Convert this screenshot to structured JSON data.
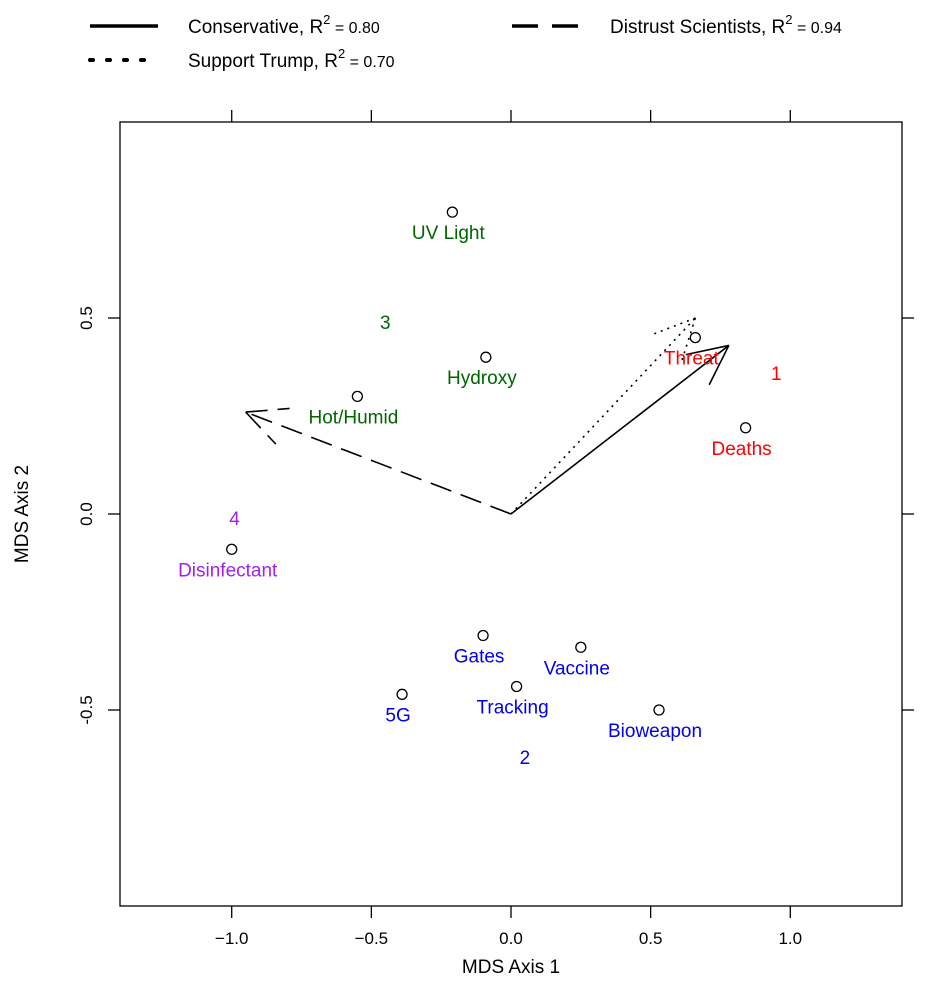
{
  "chart_data": {
    "type": "scatter",
    "title": "",
    "xlabel": "MDS Axis 1",
    "ylabel": "MDS Axis 2",
    "xlim": [
      -1.4,
      1.4
    ],
    "ylim": [
      -1.0,
      1.0
    ],
    "x_ticks": [
      -1.0,
      -0.5,
      0.0,
      0.5,
      1.0
    ],
    "x_tick_labels": [
      "−1.0",
      "−0.5",
      "0.0",
      "0.5",
      "1.0"
    ],
    "y_ticks": [
      -0.5,
      0.0,
      0.5
    ],
    "y_tick_labels": [
      "-0.5",
      "0.0",
      "0.5"
    ],
    "grid": false,
    "legend_position": "top",
    "legend": [
      {
        "label": "Conservative, R",
        "exp": "2",
        "tail": " = 0.80",
        "style": "solid"
      },
      {
        "label": "Support Trump, R",
        "exp": "2",
        "tail": " = 0.70",
        "style": "dotted"
      },
      {
        "label": "Distrust Scientists, R",
        "exp": "2",
        "tail": " = 0.94",
        "style": "dashed"
      }
    ],
    "points": [
      {
        "label": "UV Light",
        "x": -0.21,
        "y": 0.77,
        "color": "#006400"
      },
      {
        "label": "Hydroxy",
        "x": -0.09,
        "y": 0.4,
        "color": "#006400"
      },
      {
        "label": "Hot/Humid",
        "x": -0.55,
        "y": 0.3,
        "color": "#006400"
      },
      {
        "label": "Threat",
        "x": 0.66,
        "y": 0.45,
        "color": "#ff0000"
      },
      {
        "label": "Deaths",
        "x": 0.84,
        "y": 0.22,
        "color": "#ff0000"
      },
      {
        "label": "Disinfectant",
        "x": -1.0,
        "y": -0.09,
        "color": "#a020f0"
      },
      {
        "label": "Gates",
        "x": -0.1,
        "y": -0.31,
        "color": "#0000ee"
      },
      {
        "label": "Vaccine",
        "x": 0.25,
        "y": -0.34,
        "color": "#0000ee"
      },
      {
        "label": "5G",
        "x": -0.39,
        "y": -0.46,
        "color": "#0000ee"
      },
      {
        "label": "Tracking",
        "x": 0.02,
        "y": -0.44,
        "color": "#0000ee"
      },
      {
        "label": "Bioweapon",
        "x": 0.53,
        "y": -0.5,
        "color": "#0000ee"
      }
    ],
    "cluster_labels": [
      {
        "label": "1",
        "x": 0.95,
        "y": 0.36,
        "color": "#ff0000"
      },
      {
        "label": "2",
        "x": 0.05,
        "y": -0.62,
        "color": "#0000ee"
      },
      {
        "label": "3",
        "x": -0.45,
        "y": 0.49,
        "color": "#006400"
      },
      {
        "label": "4",
        "x": -0.99,
        "y": -0.01,
        "color": "#a020f0"
      }
    ],
    "vectors": [
      {
        "name": "Conservative",
        "style": "solid",
        "x": 0.78,
        "y": 0.43
      },
      {
        "name": "Support Trump",
        "style": "dotted",
        "x": 0.66,
        "y": 0.5
      },
      {
        "name": "Distrust Scientists",
        "style": "dashed",
        "x": -0.95,
        "y": 0.26
      }
    ]
  }
}
